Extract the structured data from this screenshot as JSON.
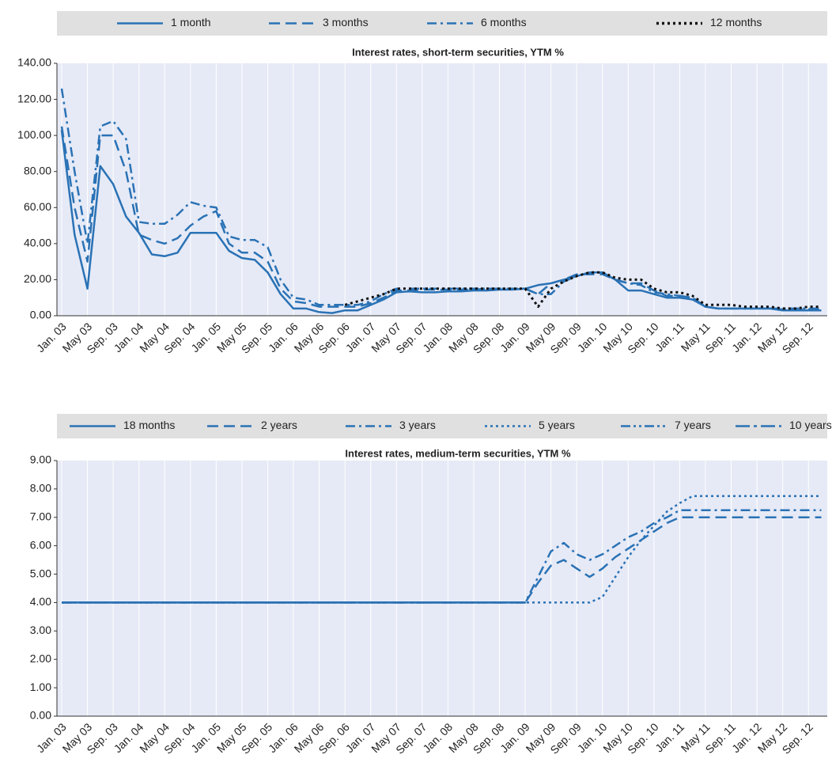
{
  "chart_data": [
    {
      "type": "line",
      "title": "Interest rates, short-term securities, YTM %",
      "categories": [
        "Jan. 03",
        null,
        "May 03",
        null,
        "Sep. 03",
        null,
        "Jan. 04",
        null,
        "May 04",
        null,
        "Sep. 04",
        null,
        "Jan. 05",
        null,
        "May 05",
        null,
        "Sep. 05",
        null,
        "Jan. 06",
        null,
        "May 06",
        null,
        "Sep. 06",
        null,
        "Jan. 07",
        null,
        "May 07",
        null,
        "Sep. 07",
        null,
        "Jan. 08",
        null,
        "May 08",
        null,
        "Sep. 08",
        null,
        "Jan. 09",
        null,
        "May 09",
        null,
        "Sep. 09",
        null,
        "Jan. 10",
        null,
        "May 10",
        null,
        "Sep. 10",
        null,
        "Jan. 11",
        null,
        "May 11",
        null,
        "Sep. 11",
        null,
        "Jan. 12",
        null,
        "May 12",
        null,
        "Sep. 12",
        null
      ],
      "series": [
        {
          "name": "1 month",
          "color": "#2a72b5",
          "dash": "solid",
          "values": [
            103,
            45,
            15,
            83,
            73,
            55,
            46,
            34,
            33,
            35,
            46,
            46,
            46,
            36,
            32,
            31,
            24,
            12,
            4,
            4,
            2,
            1.5,
            3,
            3,
            6,
            9,
            13,
            13.5,
            13,
            13,
            13.5,
            13.5,
            14,
            14,
            14.5,
            14.5,
            15,
            17,
            18,
            20,
            22,
            24,
            24,
            20,
            14,
            14,
            12,
            10,
            10,
            9,
            5,
            4,
            4,
            4,
            4,
            4,
            3,
            3,
            3,
            3
          ]
        },
        {
          "name": "3 months",
          "color": "#2a72b5",
          "dash": "dashed",
          "values": [
            105,
            60,
            30,
            100,
            100,
            80,
            45,
            42,
            40,
            43,
            50,
            55,
            58,
            40,
            35,
            35,
            30,
            15,
            8,
            7,
            5,
            5,
            5,
            5,
            7,
            10,
            14,
            14,
            14.5,
            14.5,
            14.5,
            14.5,
            14.5,
            15,
            15,
            15,
            15,
            12,
            18,
            20,
            23,
            23,
            23,
            20,
            18,
            18,
            14,
            11,
            11,
            10,
            5,
            4,
            4,
            4,
            4,
            4,
            3.5,
            3.5,
            3.5,
            3.5
          ]
        },
        {
          "name": "6 months",
          "color": "#2a72b5",
          "dash": "dashdot",
          "values": [
            126,
            80,
            40,
            105,
            108,
            98,
            52,
            51,
            51,
            56,
            63,
            61,
            60,
            44,
            42,
            42,
            38,
            20,
            10,
            9,
            6,
            6,
            6,
            6,
            8,
            12,
            15,
            15,
            15,
            15,
            15,
            15,
            15,
            15,
            15,
            15,
            15,
            12,
            12,
            19,
            22,
            24,
            24,
            20,
            18,
            17,
            13,
            12,
            11,
            10,
            5,
            4,
            4,
            4,
            4,
            4,
            4,
            4,
            4,
            4
          ]
        },
        {
          "name": "12 months",
          "color": "#111111",
          "dash": "dotted",
          "values": [
            null,
            null,
            null,
            null,
            null,
            null,
            null,
            null,
            null,
            null,
            null,
            null,
            null,
            null,
            null,
            null,
            null,
            null,
            null,
            null,
            null,
            null,
            6,
            8,
            10,
            12,
            15,
            15,
            15,
            15,
            15,
            15,
            15,
            15,
            15,
            15,
            15,
            5,
            15,
            19,
            22,
            24,
            24,
            21,
            20,
            20,
            15,
            13,
            13,
            11,
            6,
            6,
            6,
            5,
            5,
            5,
            4,
            4,
            5,
            5
          ]
        }
      ],
      "ylim": [
        0,
        140
      ],
      "yticks": [
        {
          "value": 0,
          "label": "0.00"
        },
        {
          "value": 20,
          "label": "20.00"
        },
        {
          "value": 40,
          "label": "40.00"
        },
        {
          "value": 60,
          "label": "60.00"
        },
        {
          "value": 80,
          "label": "80.00"
        },
        {
          "value": 100,
          "label": "100.00"
        },
        {
          "value": 120,
          "label": "120.00"
        },
        {
          "value": 140,
          "label": "140.00"
        }
      ]
    },
    {
      "type": "line",
      "title": "Interest rates, medium-term securities, YTM %",
      "categories": [
        "Jan. 03",
        null,
        "May 03",
        null,
        "Sep. 03",
        null,
        "Jan. 04",
        null,
        "May 04",
        null,
        "Sep. 04",
        null,
        "Jan. 05",
        null,
        "May 05",
        null,
        "Sep. 05",
        null,
        "Jan. 06",
        null,
        "May 06",
        null,
        "Sep. 06",
        null,
        "Jan. 07",
        null,
        "May 07",
        null,
        "Sep. 07",
        null,
        "Jan. 08",
        null,
        "May 08",
        null,
        "Sep. 08",
        null,
        "Jan. 09",
        null,
        "May 09",
        null,
        "Sep. 09",
        null,
        "Jan. 10",
        null,
        "May 10",
        null,
        "Sep. 10",
        null,
        "Jan. 11",
        null,
        "May 11",
        null,
        "Sep. 11",
        null,
        "Jan. 12",
        null,
        "May 12",
        null,
        "Sep. 12",
        null
      ],
      "series": [
        {
          "name": "18 months",
          "color": "#2a72b5",
          "dash": "solid",
          "values": [
            4,
            4,
            4,
            4,
            4,
            4,
            4,
            4,
            4,
            4,
            4,
            4,
            4,
            4,
            4,
            4,
            4,
            4,
            4,
            4,
            4,
            4,
            4,
            4,
            4,
            4,
            4,
            4,
            4,
            4,
            4,
            4,
            4,
            4,
            4,
            4,
            4,
            null,
            null,
            null,
            null,
            null,
            null,
            null,
            null,
            null,
            null,
            null,
            null,
            null,
            null,
            null,
            null,
            null,
            null,
            null,
            null,
            null,
            null,
            null
          ]
        },
        {
          "name": "2 years",
          "color": "#2a72b5",
          "dash": "dashed",
          "values": [
            4,
            4,
            4,
            4,
            4,
            4,
            4,
            4,
            4,
            4,
            4,
            4,
            4,
            4,
            4,
            4,
            4,
            4,
            4,
            4,
            4,
            4,
            4,
            4,
            4,
            4,
            4,
            4,
            4,
            4,
            4,
            4,
            4,
            4,
            4,
            4,
            4,
            4.7,
            5.3,
            5.5,
            5.2,
            4.9,
            5.2,
            5.6,
            5.9,
            6.2,
            6.5,
            6.8,
            7,
            7,
            7,
            7,
            7,
            7,
            7,
            7,
            7,
            7,
            7,
            7
          ]
        },
        {
          "name": "3 years",
          "color": "#2a72b5",
          "dash": "dashdot",
          "values": [
            4,
            4,
            4,
            4,
            4,
            4,
            4,
            4,
            4,
            4,
            4,
            4,
            4,
            4,
            4,
            4,
            4,
            4,
            4,
            4,
            4,
            4,
            4,
            4,
            4,
            4,
            4,
            4,
            4,
            4,
            4,
            4,
            4,
            4,
            4,
            4,
            4,
            4.9,
            5.8,
            6.1,
            5.7,
            5.5,
            5.7,
            6,
            6.3,
            6.5,
            6.8,
            7,
            7.25,
            7.25,
            7.25,
            7.25,
            7.25,
            7.25,
            7.25,
            7.25,
            7.25,
            7.25,
            7.25,
            7.25
          ]
        },
        {
          "name": "5 years",
          "color": "#2a72b5",
          "dash": "dotted",
          "values": [
            4,
            4,
            4,
            4,
            4,
            4,
            4,
            4,
            4,
            4,
            4,
            4,
            4,
            4,
            4,
            4,
            4,
            4,
            4,
            4,
            4,
            4,
            4,
            4,
            4,
            4,
            4,
            4,
            4,
            4,
            4,
            4,
            4,
            4,
            4,
            4,
            4,
            4,
            4,
            4,
            4,
            4,
            4.2,
            4.9,
            5.6,
            6.2,
            6.7,
            7.2,
            7.5,
            7.75,
            7.75,
            7.75,
            7.75,
            7.75,
            7.75,
            7.75,
            7.75,
            7.75,
            7.75,
            7.75
          ]
        },
        {
          "name": "7 years",
          "color": "#2a72b5",
          "dash": "dashdotdot",
          "values": [
            4,
            4,
            4,
            4,
            4,
            4,
            4,
            4,
            4,
            4,
            4,
            4,
            4,
            4,
            4,
            4,
            4,
            4,
            4,
            4,
            4,
            4,
            4,
            4,
            4,
            4,
            4,
            4,
            4,
            4,
            4,
            4,
            4,
            4,
            4,
            4,
            4,
            null,
            null,
            null,
            null,
            null,
            null,
            null,
            null,
            null,
            null,
            null,
            null,
            null,
            null,
            null,
            null,
            null,
            null,
            null,
            null,
            null,
            null,
            null
          ]
        },
        {
          "name": "10 years",
          "color": "#2a72b5",
          "dash": "longdashdot",
          "values": [
            4,
            4,
            4,
            4,
            4,
            4,
            4,
            4,
            4,
            4,
            4,
            4,
            4,
            4,
            4,
            4,
            4,
            4,
            4,
            4,
            4,
            4,
            4,
            4,
            4,
            4,
            4,
            4,
            4,
            4,
            4,
            4,
            4,
            4,
            4,
            4,
            4,
            null,
            null,
            null,
            null,
            null,
            null,
            null,
            null,
            null,
            null,
            null,
            null,
            null,
            null,
            null,
            null,
            null,
            null,
            null,
            null,
            null,
            null,
            null
          ]
        }
      ],
      "ylim": [
        0,
        9
      ],
      "yticks": [
        {
          "value": 0,
          "label": "0.00"
        },
        {
          "value": 1,
          "label": "1.00"
        },
        {
          "value": 2,
          "label": "2.00"
        },
        {
          "value": 3,
          "label": "3.00"
        },
        {
          "value": 4,
          "label": "4.00"
        },
        {
          "value": 5,
          "label": "5.00"
        },
        {
          "value": 6,
          "label": "6.00"
        },
        {
          "value": 7,
          "label": "7.00"
        },
        {
          "value": 8,
          "label": "8.00"
        },
        {
          "value": 9,
          "label": "9.00"
        }
      ]
    }
  ]
}
